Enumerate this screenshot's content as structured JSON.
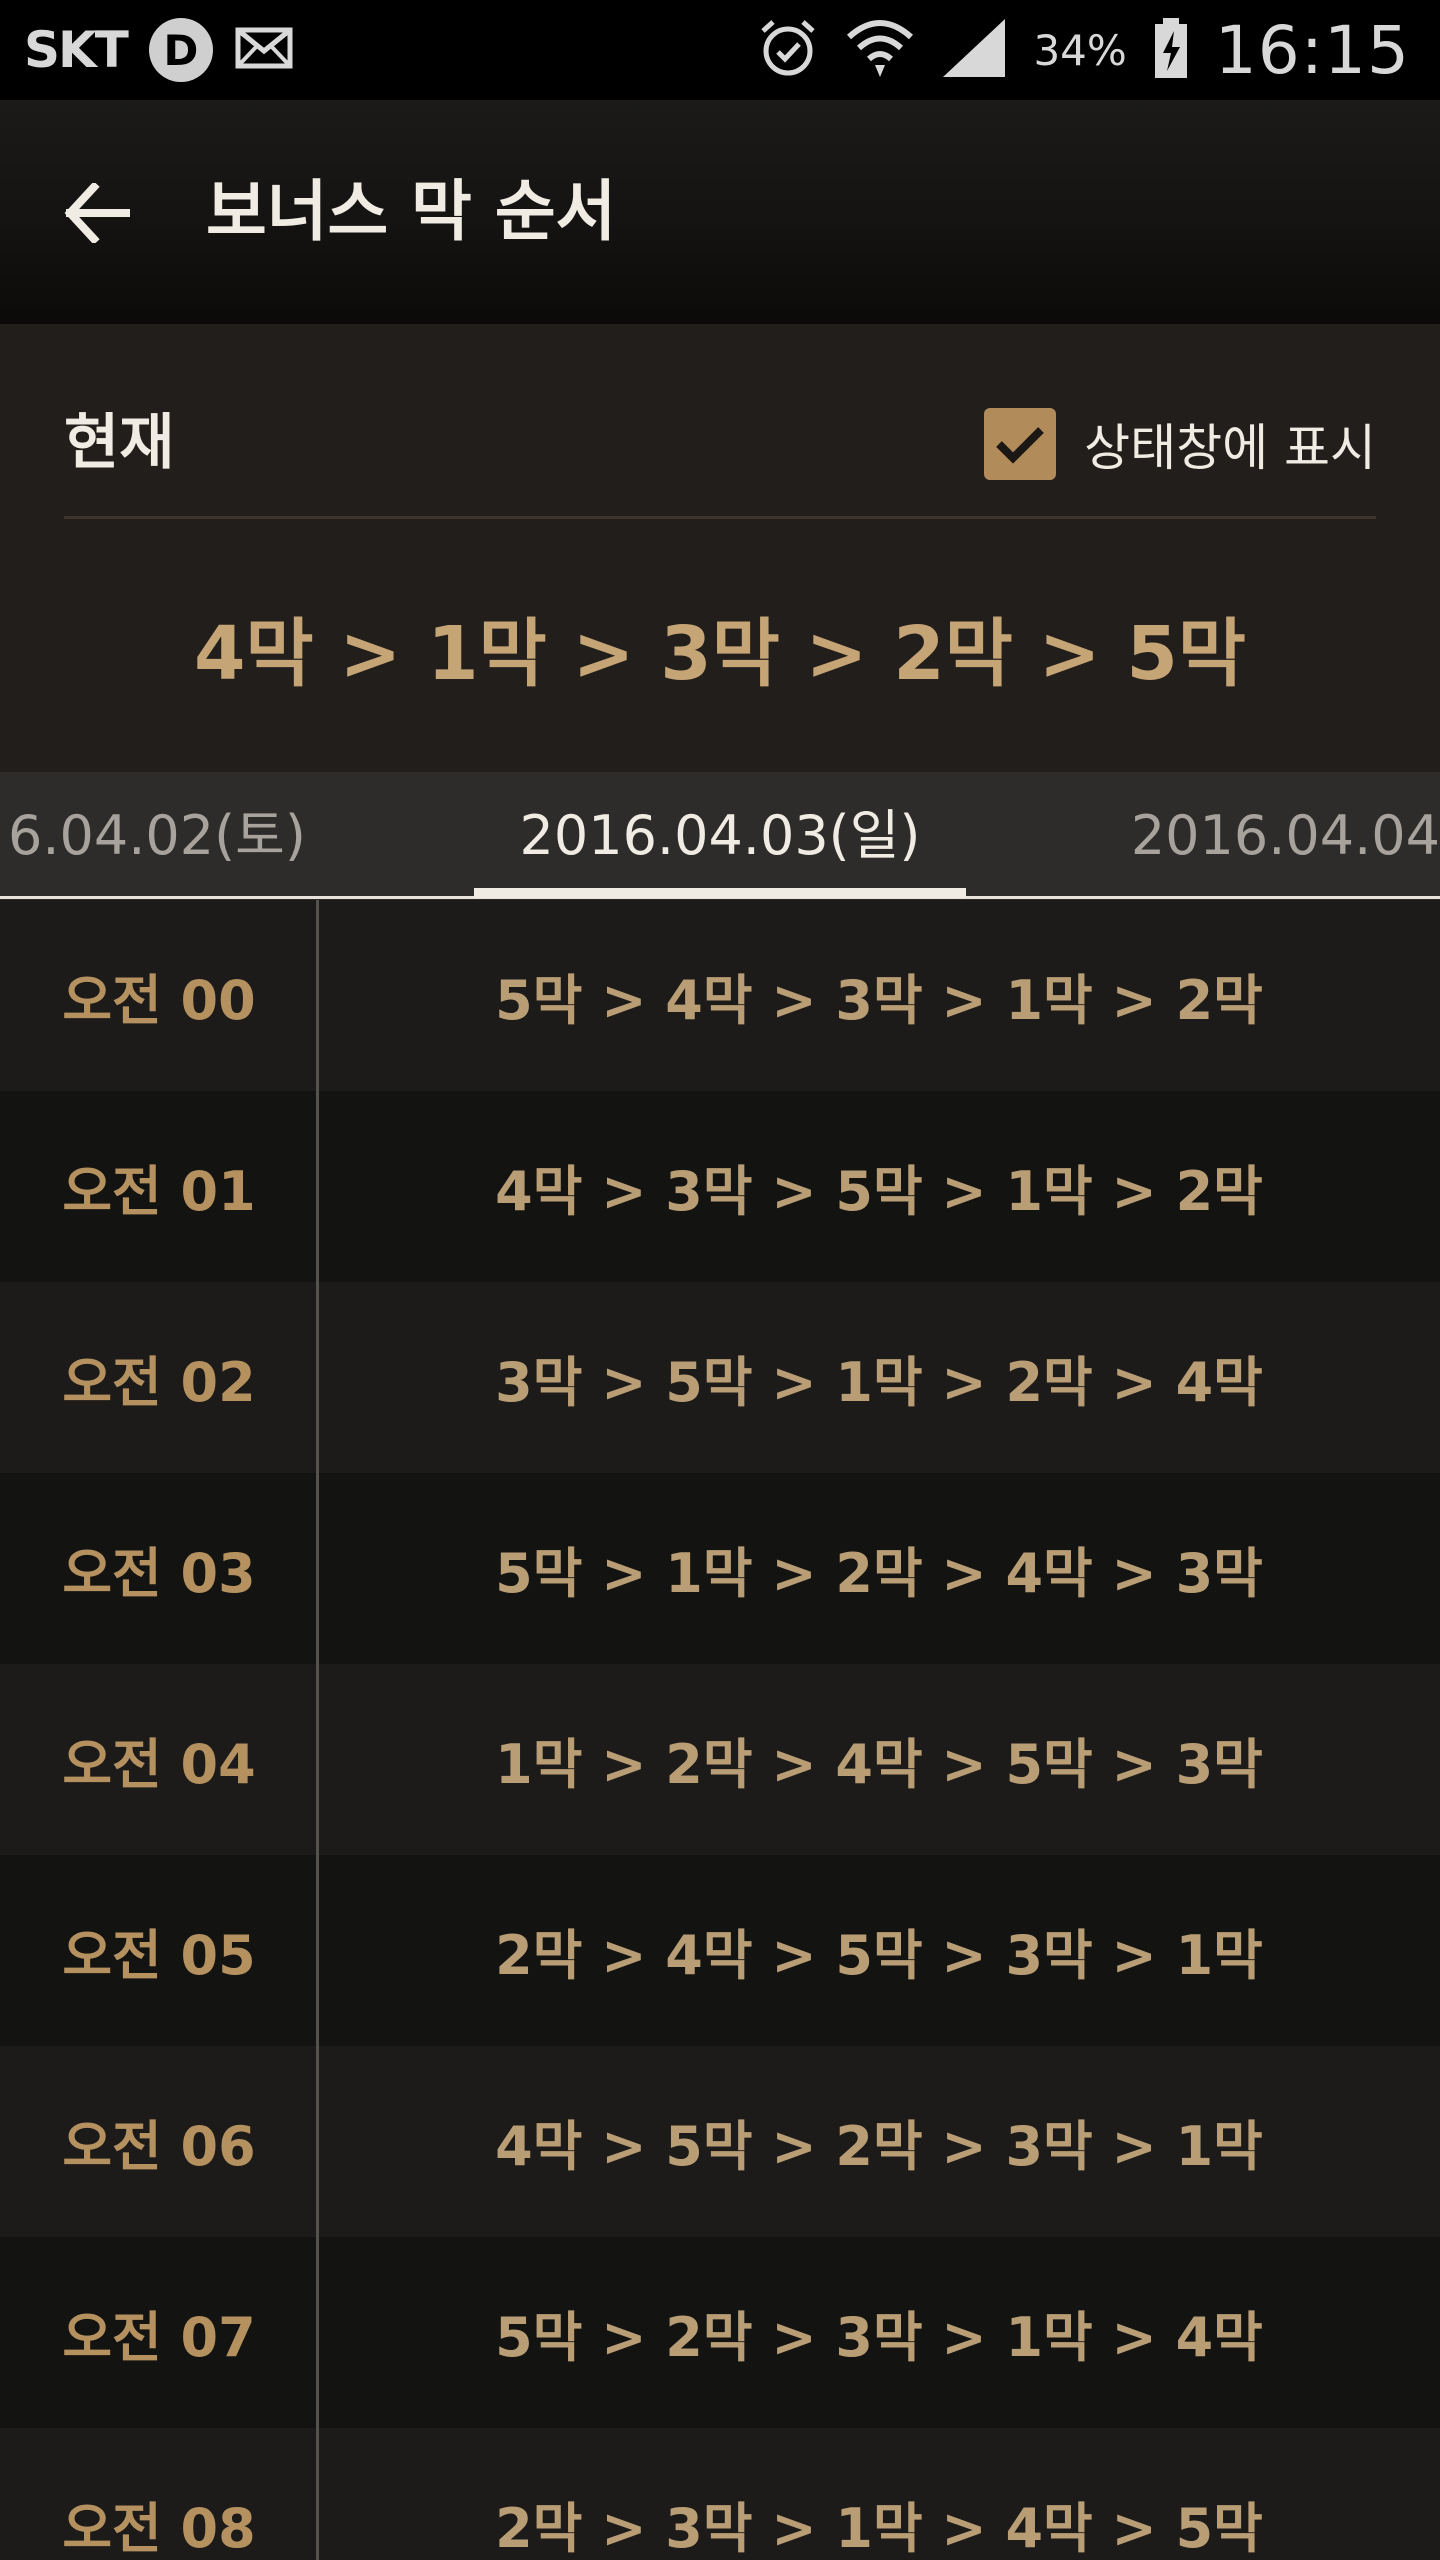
{
  "status_bar": {
    "carrier": "SKT",
    "d_badge": "D",
    "battery": "34%",
    "time": "16:15"
  },
  "app_bar": {
    "title": "보너스 막 순서"
  },
  "current": {
    "label": "현재",
    "checkbox_label": "상태창에 표시",
    "checkbox_checked": true,
    "order": "4막 > 1막 > 3막 > 2막 > 5막"
  },
  "tabs": {
    "prev": "6.04.02(토)",
    "current": "2016.04.03(일)",
    "next": "2016.04.04"
  },
  "schedule": [
    {
      "time": "오전 00",
      "order": "5막 > 4막 > 3막 > 1막 > 2막"
    },
    {
      "time": "오전 01",
      "order": "4막 > 3막 > 5막 > 1막 > 2막"
    },
    {
      "time": "오전 02",
      "order": "3막 > 5막 > 1막 > 2막 > 4막"
    },
    {
      "time": "오전 03",
      "order": "5막 > 1막 > 2막 > 4막 > 3막"
    },
    {
      "time": "오전 04",
      "order": "1막 > 2막 > 4막 > 5막 > 3막"
    },
    {
      "time": "오전 05",
      "order": "2막 > 4막 > 5막 > 3막 > 1막"
    },
    {
      "time": "오전 06",
      "order": "4막 > 5막 > 2막 > 3막 > 1막"
    },
    {
      "time": "오전 07",
      "order": "5막 > 2막 > 3막 > 1막 > 4막"
    },
    {
      "time": "오전 08",
      "order": "2막 > 3막 > 1막 > 4막 > 5막"
    }
  ],
  "colors": {
    "accent": "#b28b5b",
    "time_text": "#b5915f",
    "order_text": "#b89d75",
    "current_panel_bg": "#221e1b"
  }
}
